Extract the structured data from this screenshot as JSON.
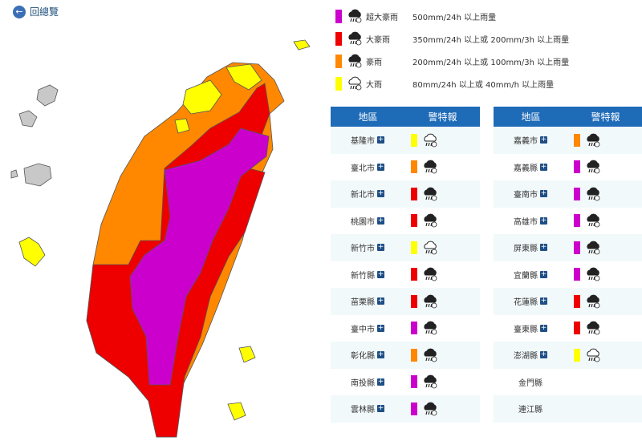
{
  "back": "回總覽",
  "legend": [
    {
      "name": "超大豪雨",
      "description": "500mm/24h 以上雨量",
      "color": "#cc00cc"
    },
    {
      "name": "大豪雨",
      "description": "350mm/24h 以上或 200mm/3h 以上雨量",
      "color": "#ee0000"
    },
    {
      "name": "豪雨",
      "description": "200mm/24h 以上或 100mm/3h 以上雨量",
      "color": "#ff8800"
    },
    {
      "name": "大雨",
      "description": "80mm/24h 以上或 40mm/h 以上雨量",
      "color": "#ffff00"
    }
  ],
  "tables": [
    {
      "headers": [
        "地區",
        "警特報"
      ],
      "rows": [
        {
          "region": "基隆市",
          "level": "大雨"
        },
        {
          "region": "臺北市",
          "level": "豪雨"
        },
        {
          "region": "新北市",
          "level": "大豪雨"
        },
        {
          "region": "桃園市",
          "level": "大豪雨"
        },
        {
          "region": "新竹市",
          "level": "大雨"
        },
        {
          "region": "新竹縣",
          "level": "大豪雨"
        },
        {
          "region": "苗栗縣",
          "level": "大豪雨"
        },
        {
          "region": "臺中市",
          "level": "超大豪雨"
        },
        {
          "region": "彰化縣",
          "level": "豪雨"
        },
        {
          "region": "南投縣",
          "level": "超大豪雨"
        },
        {
          "region": "雲林縣",
          "level": "超大豪雨"
        }
      ]
    },
    {
      "headers": [
        "地區",
        "警特報"
      ],
      "rows": [
        {
          "region": "嘉義市",
          "level": "豪雨"
        },
        {
          "region": "嘉義縣",
          "level": "超大豪雨"
        },
        {
          "region": "臺南市",
          "level": "超大豪雨"
        },
        {
          "region": "高雄市",
          "level": "超大豪雨"
        },
        {
          "region": "屏東縣",
          "level": "超大豪雨"
        },
        {
          "region": "宜蘭縣",
          "level": "超大豪雨"
        },
        {
          "region": "花蓮縣",
          "level": "大豪雨"
        },
        {
          "region": "臺東縣",
          "level": "大豪雨"
        },
        {
          "region": "澎湖縣",
          "level": "大雨"
        },
        {
          "region": "金門縣"
        },
        {
          "region": "連江縣"
        }
      ]
    }
  ]
}
